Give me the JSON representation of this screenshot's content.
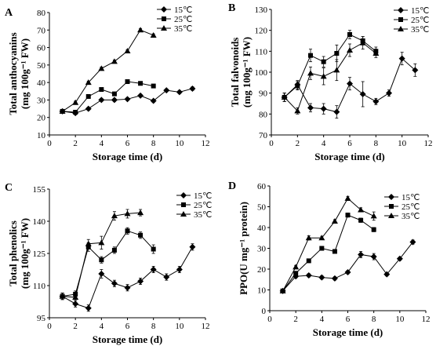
{
  "chart_data": [
    {
      "type": "line",
      "panel_label": "A",
      "xlabel": "Storage time (d)",
      "ylabel_lines": [
        "Total anthocyanins",
        "(mg 100g⁻¹ FW)"
      ],
      "xlim": [
        0,
        12
      ],
      "ylim": [
        10,
        80
      ],
      "xticks": [
        "0",
        "2",
        "4",
        "6",
        "8",
        "10",
        "12"
      ],
      "yticks": [
        "10",
        "20",
        "30",
        "40",
        "50",
        "60",
        "70",
        "80"
      ],
      "legend_position": "top-right",
      "series": [
        {
          "name": "15℃",
          "marker": "diamond",
          "x": [
            1,
            2,
            3,
            4,
            5,
            6,
            7,
            8,
            9,
            10,
            11
          ],
          "y": [
            23.5,
            22.5,
            25,
            30,
            30,
            30.5,
            32.5,
            29.5,
            35.5,
            34.5,
            36.5
          ],
          "err": [
            1,
            0.8,
            0.8,
            0.8,
            0.8,
            0.8,
            0.8,
            0.8,
            0.8,
            0.8,
            1
          ]
        },
        {
          "name": "25℃",
          "marker": "square",
          "x": [
            1,
            2,
            3,
            4,
            5,
            6,
            7,
            8
          ],
          "y": [
            23.5,
            23,
            32,
            36,
            33.5,
            40.5,
            39.5,
            38
          ],
          "err": [
            0.8,
            0.8,
            0.8,
            0.8,
            0.8,
            0.8,
            0.8,
            0.8
          ]
        },
        {
          "name": "35℃",
          "marker": "triangle",
          "x": [
            1,
            2,
            3,
            4,
            5,
            6,
            7,
            8
          ],
          "y": [
            23.5,
            28.5,
            40,
            48,
            52,
            58,
            70,
            67
          ],
          "err": [
            0.8,
            0.8,
            0.8,
            0.8,
            0.8,
            0.8,
            0.8,
            0.8
          ]
        }
      ]
    },
    {
      "type": "line",
      "panel_label": "B",
      "xlabel": "Storage time (d)",
      "ylabel_lines": [
        "Total falvonoids",
        "(mg 100g⁻¹ FW)"
      ],
      "xlim": [
        0,
        12
      ],
      "ylim": [
        70,
        130
      ],
      "xticks": [
        "0",
        "2",
        "4",
        "6",
        "8",
        "10",
        "12"
      ],
      "yticks": [
        "70",
        "80",
        "90",
        "100",
        "110",
        "120",
        "130"
      ],
      "legend_position": "top-right",
      "series": [
        {
          "name": "15℃",
          "marker": "diamond",
          "x": [
            1,
            2,
            3,
            4,
            5,
            6,
            7,
            8,
            9,
            10,
            11
          ],
          "y": [
            88,
            94,
            83,
            82.5,
            81,
            94.5,
            89.5,
            86,
            90,
            106.5,
            101
          ],
          "err": [
            2,
            2,
            2,
            2.5,
            3,
            3,
            6,
            1.5,
            1.5,
            3,
            3
          ]
        },
        {
          "name": "25℃",
          "marker": "square",
          "x": [
            1,
            2,
            3,
            4,
            5,
            6,
            7,
            8
          ],
          "y": [
            88,
            93.5,
            108,
            105,
            109,
            118,
            115,
            110
          ],
          "err": [
            2,
            2,
            3,
            2.5,
            4,
            2,
            2,
            2
          ]
        },
        {
          "name": "35℃",
          "marker": "triangle",
          "x": [
            1,
            2,
            3,
            4,
            5,
            6,
            7,
            8
          ],
          "y": [
            88,
            81.5,
            99.5,
            98,
            101,
            110.5,
            114,
            109
          ],
          "err": [
            2,
            1.5,
            3,
            4,
            5,
            3,
            3,
            2
          ]
        }
      ]
    },
    {
      "type": "line",
      "panel_label": "C",
      "xlabel": "Storage time (d)",
      "ylabel_lines": [
        "Total phenolics",
        "(mg 100g⁻¹ FW)"
      ],
      "xlim": [
        0,
        12
      ],
      "ylim": [
        95,
        155
      ],
      "xticks": [
        "0",
        "2",
        "4",
        "6",
        "8",
        "10",
        "12"
      ],
      "yticks": [
        "95",
        "110",
        "125",
        "140",
        "155"
      ],
      "legend_position": "top-right",
      "series": [
        {
          "name": "15℃",
          "marker": "diamond",
          "x": [
            1,
            2,
            3,
            4,
            5,
            6,
            7,
            8,
            9,
            10,
            11
          ],
          "y": [
            105,
            101.5,
            99.5,
            115.5,
            111,
            109,
            112,
            117.5,
            114,
            117.5,
            128
          ],
          "err": [
            1.5,
            1.5,
            1.5,
            2,
            1.5,
            1.5,
            1.5,
            1.5,
            1.5,
            1.5,
            1.5
          ]
        },
        {
          "name": "25℃",
          "marker": "square",
          "x": [
            1,
            2,
            3,
            4,
            5,
            6,
            7,
            8
          ],
          "y": [
            105,
            106,
            128,
            122,
            126.5,
            135.5,
            133.5,
            127
          ],
          "err": [
            1.5,
            1.5,
            2,
            1.5,
            1.5,
            1.5,
            1.5,
            2
          ]
        },
        {
          "name": "35℃",
          "marker": "triangle",
          "x": [
            1,
            2,
            3,
            4,
            5,
            6,
            7
          ],
          "y": [
            105,
            104.5,
            129.5,
            130,
            142.5,
            143.5,
            144
          ],
          "err": [
            1.5,
            1.5,
            2,
            3,
            2,
            2,
            1.5
          ]
        }
      ]
    },
    {
      "type": "line",
      "panel_label": "D",
      "xlabel": "Storage time (d)",
      "ylabel_lines": [
        "PPO(U mg⁻¹ protein)"
      ],
      "xlim": [
        0,
        12
      ],
      "ylim": [
        0,
        60
      ],
      "xticks": [
        "0",
        "2",
        "4",
        "6",
        "8",
        "10",
        "12"
      ],
      "yticks": [
        "0",
        "10",
        "20",
        "30",
        "40",
        "50",
        "60"
      ],
      "legend_position": "top-right",
      "series": [
        {
          "name": "15℃",
          "marker": "diamond",
          "x": [
            1,
            2,
            3,
            4,
            5,
            6,
            7,
            8,
            9,
            10,
            11
          ],
          "y": [
            9.5,
            16.5,
            17,
            16,
            15.5,
            18.5,
            27,
            26,
            17.5,
            25,
            33
          ],
          "err": [
            0.8,
            0.8,
            0.8,
            0.8,
            0.8,
            0.8,
            1.5,
            1.5,
            0.8,
            0.8,
            1
          ]
        },
        {
          "name": "25℃",
          "marker": "square",
          "x": [
            1,
            2,
            3,
            4,
            5,
            6,
            7,
            8
          ],
          "y": [
            9.5,
            18,
            24,
            30,
            28.5,
            46,
            43.5,
            39
          ],
          "err": [
            0.8,
            0.8,
            0.8,
            0.8,
            0.8,
            1,
            1,
            1
          ]
        },
        {
          "name": "35℃",
          "marker": "triangle",
          "x": [
            1,
            2,
            3,
            4,
            5,
            6,
            7,
            8
          ],
          "y": [
            9.5,
            21,
            35,
            35,
            43,
            54,
            48.5,
            45.5
          ],
          "err": [
            0.8,
            0.8,
            1,
            0.8,
            0.8,
            1,
            1,
            2
          ]
        }
      ]
    }
  ]
}
